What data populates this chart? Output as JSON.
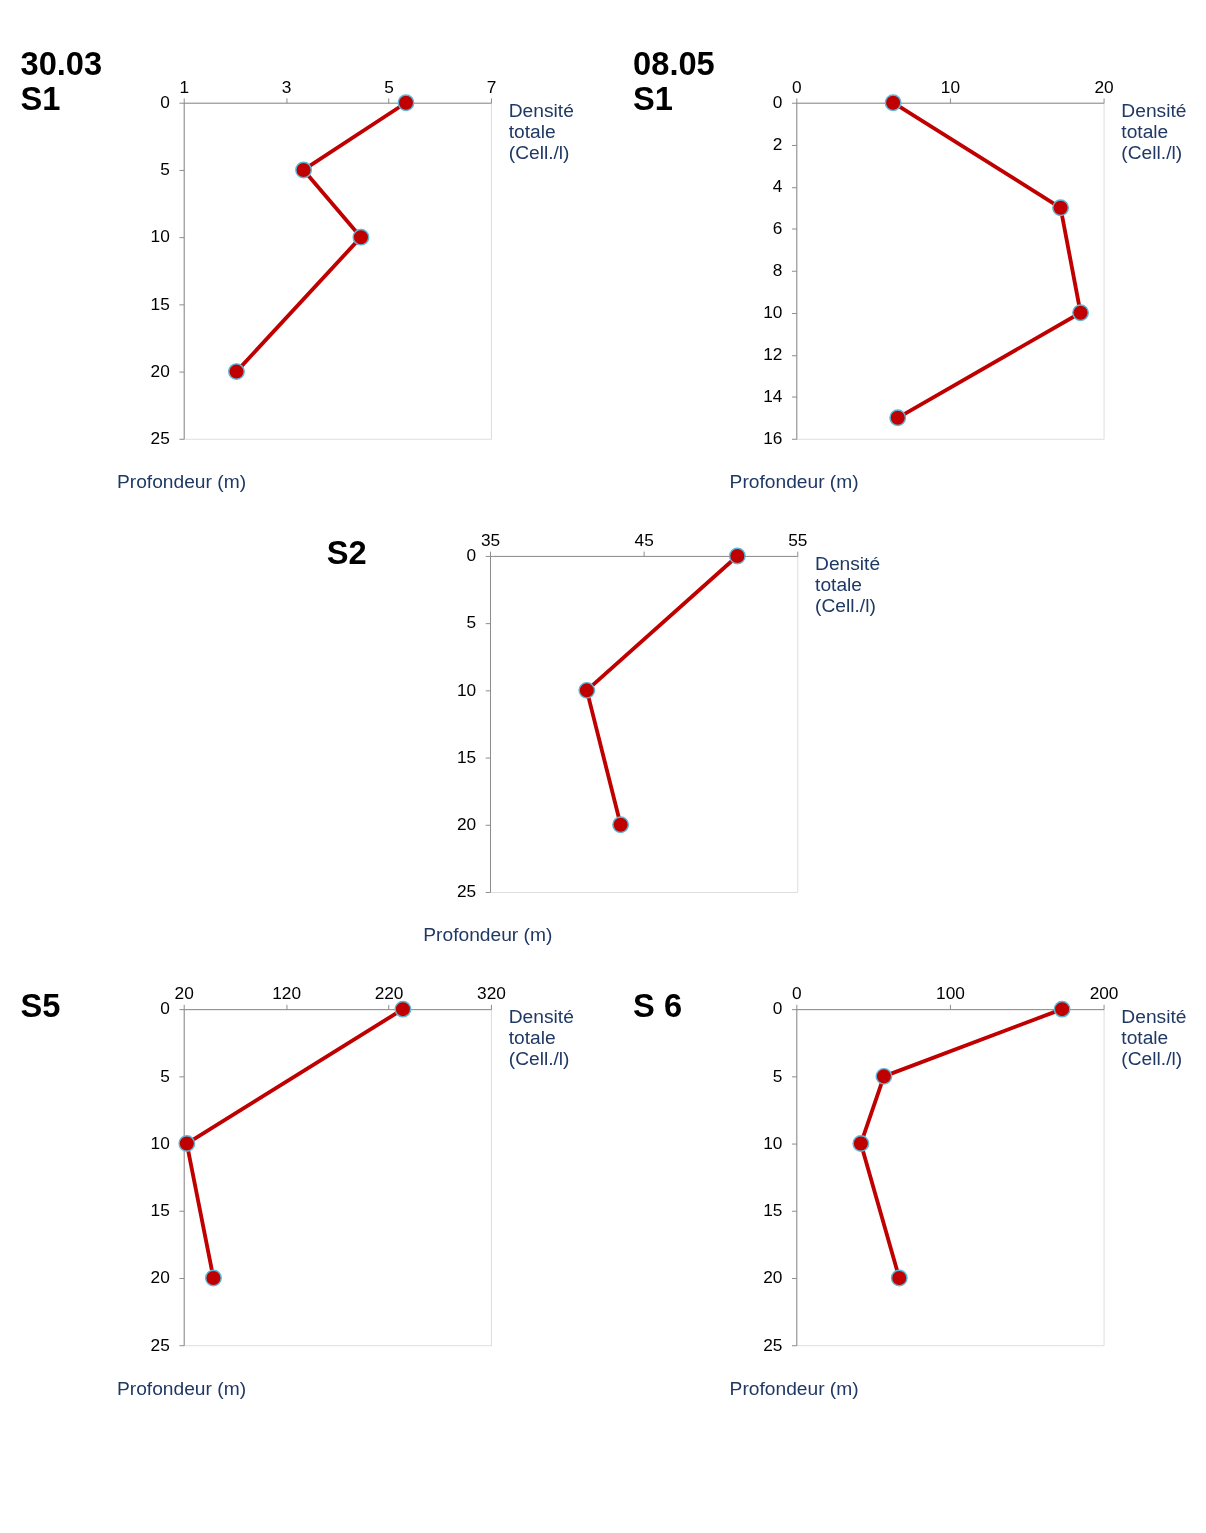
{
  "chart_data": [
    {
      "type": "line",
      "title": "30.03",
      "subtitle": "S1",
      "orientation": "horizontal",
      "xlabel": "Densité totale (Cell./l)",
      "ylabel": "Profondeur (m)",
      "x": [
        0,
        5,
        10,
        20
      ],
      "series": [
        {
          "color": "#c00000",
          "values": [
            5.34,
            3.34,
            4.46,
            2.03
          ]
        }
      ],
      "xlim": [
        1,
        7
      ],
      "xticks": [
        1,
        3,
        5,
        7
      ],
      "ylim": [
        25,
        0
      ],
      "yticks": [
        0,
        5,
        10,
        15,
        20,
        25
      ],
      "marker": "circle",
      "grid": false
    },
    {
      "type": "line",
      "title": "08.05",
      "subtitle": "S1",
      "orientation": "horizontal",
      "xlabel": "Densité totale (Cell./l)",
      "ylabel": "Profondeur (m)",
      "x": [
        0,
        5,
        10,
        15
      ],
      "series": [
        {
          "color": "#c00000",
          "values": [
            6.3,
            17.2,
            18.5,
            6.6
          ]
        }
      ],
      "xlim": [
        0,
        20
      ],
      "xticks": [
        0,
        10,
        20
      ],
      "ylim": [
        16,
        0
      ],
      "yticks": [
        0,
        2,
        4,
        6,
        8,
        10,
        12,
        14,
        16
      ],
      "marker": "circle",
      "grid": false
    },
    {
      "type": "line",
      "title": "S2",
      "orientation": "horizontal",
      "xlabel": "Densité totale (Cell./l)",
      "ylabel": "Profondeur (m)",
      "x": [
        0,
        10,
        20
      ],
      "series": [
        {
          "color": "#c00000",
          "values": [
            51.1,
            41.3,
            43.5
          ]
        }
      ],
      "xlim": [
        35,
        55
      ],
      "xticks": [
        35,
        45,
        55
      ],
      "ylim": [
        25,
        0
      ],
      "yticks": [
        0,
        5,
        10,
        15,
        20,
        25
      ],
      "marker": "circle",
      "grid": false
    },
    {
      "type": "line",
      "title": "S5",
      "orientation": "horizontal",
      "xlabel": "Densité totale (Cell./l)",
      "ylabel": "Profondeur (m)",
      "x": [
        0,
        10,
        20
      ],
      "series": [
        {
          "color": "#c00000",
          "values": [
            234,
            23,
            49
          ]
        }
      ],
      "xlim": [
        20,
        320
      ],
      "xticks": [
        20,
        120,
        220,
        320
      ],
      "ylim": [
        25,
        0
      ],
      "yticks": [
        0,
        5,
        10,
        15,
        20,
        25
      ],
      "marker": "circle",
      "grid": false
    },
    {
      "type": "line",
      "title": "S 6",
      "orientation": "horizontal",
      "xlabel": "Densité totale (Cell./l)",
      "ylabel": "Profondeur (m)",
      "x": [
        0,
        5,
        10,
        20
      ],
      "series": [
        {
          "color": "#c00000",
          "values": [
            173,
            57,
            42,
            67
          ]
        }
      ],
      "xlim": [
        0,
        200
      ],
      "xticks": [
        0,
        100,
        200
      ],
      "ylim": [
        25,
        0
      ],
      "yticks": [
        0,
        5,
        10,
        15,
        20,
        25
      ],
      "marker": "circle",
      "grid": false
    }
  ]
}
